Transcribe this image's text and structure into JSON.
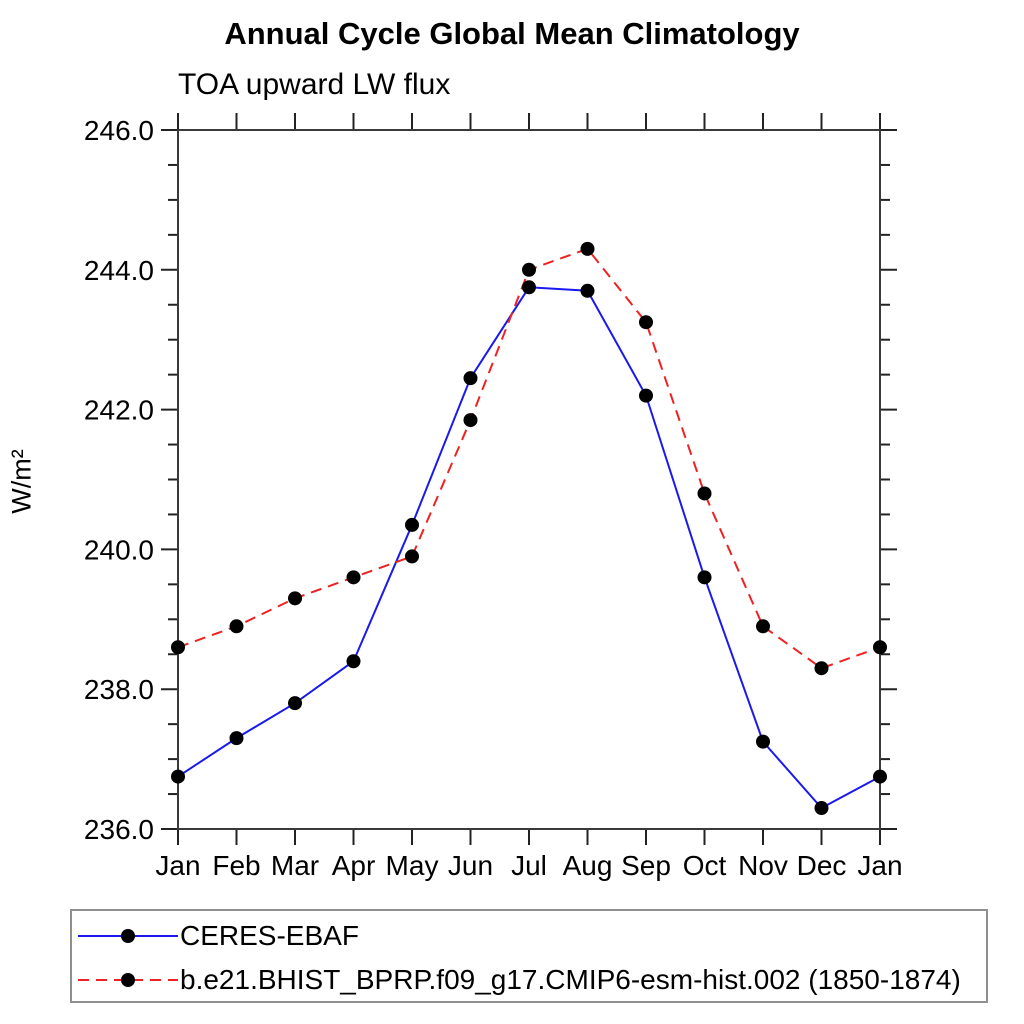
{
  "chart_data": {
    "type": "line",
    "title": "Annual Cycle Global Mean Climatology",
    "subtitle": "TOA upward LW flux",
    "ylabel": "W/m²",
    "xlabel": "",
    "categories": [
      "Jan",
      "Feb",
      "Mar",
      "Apr",
      "May",
      "Jun",
      "Jul",
      "Aug",
      "Sep",
      "Oct",
      "Nov",
      "Dec",
      "Jan"
    ],
    "ylim": [
      236.0,
      246.0
    ],
    "ytick_major": 2.0,
    "ytick_minor": 0.5,
    "ytick_labels": [
      "246.0",
      "244.0",
      "242.0",
      "240.0",
      "238.0",
      "236.0"
    ],
    "grid": false,
    "legend_position": "bottom-left-box",
    "axis_color": "#3a3a3a",
    "marker": "filled-circle",
    "marker_color": "#000000",
    "series": [
      {
        "name": "CERES-EBAF",
        "color": "#1a1aee",
        "style": "solid",
        "values": [
          236.75,
          237.3,
          237.8,
          238.4,
          240.35,
          242.45,
          243.75,
          243.7,
          242.2,
          239.6,
          237.25,
          236.3,
          236.75
        ]
      },
      {
        "name": "b.e21.BHIST_BPRP.f09_g17.CMIP6-esm-hist.002 (1850-1874)",
        "color": "#ee2222",
        "style": "dashed",
        "values": [
          238.6,
          238.9,
          239.3,
          239.6,
          239.9,
          241.85,
          244.0,
          244.3,
          243.25,
          240.8,
          238.9,
          238.3,
          238.6
        ]
      }
    ]
  }
}
